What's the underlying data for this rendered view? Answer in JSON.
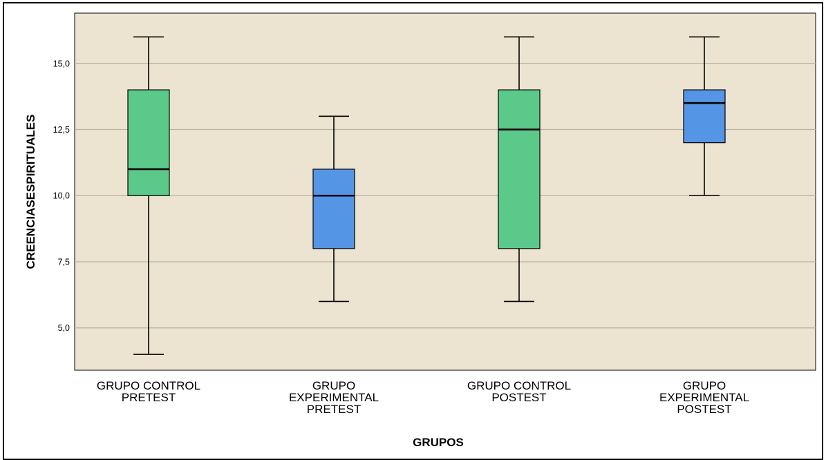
{
  "chart_data": {
    "type": "boxplot",
    "xlabel": "GRUPOS",
    "ylabel": "CREENCIASESPIRITUALES",
    "ylim": [
      3.4,
      16.9
    ],
    "yticks": [
      5.0,
      7.5,
      10.0,
      12.5,
      15.0
    ],
    "ytick_labels": [
      "5,0",
      "7,5",
      "10,0",
      "12,5",
      "15,0"
    ],
    "grid": true,
    "colors": {
      "plot_bg": "#ECE4D0",
      "grid": "#B8B0A0",
      "control": "#5BC98A",
      "experimental": "#5595E6"
    },
    "categories": [
      {
        "label_lines": [
          "GRUPO CONTROL",
          "PRETEST"
        ],
        "min": 4.0,
        "q1": 10.0,
        "median": 11.0,
        "q3": 14.0,
        "max": 16.0,
        "color": "control"
      },
      {
        "label_lines": [
          "GRUPO",
          "EXPERIMENTAL",
          "PRETEST"
        ],
        "min": 6.0,
        "q1": 8.0,
        "median": 10.0,
        "q3": 11.0,
        "max": 13.0,
        "color": "experimental"
      },
      {
        "label_lines": [
          "GRUPO CONTROL",
          "POSTEST"
        ],
        "min": 6.0,
        "q1": 8.0,
        "median": 12.5,
        "q3": 14.0,
        "max": 16.0,
        "color": "control"
      },
      {
        "label_lines": [
          "GRUPO",
          "EXPERIMENTAL",
          "POSTEST"
        ],
        "min": 10.0,
        "q1": 12.0,
        "median": 13.5,
        "q3": 14.0,
        "max": 16.0,
        "color": "experimental"
      }
    ]
  }
}
